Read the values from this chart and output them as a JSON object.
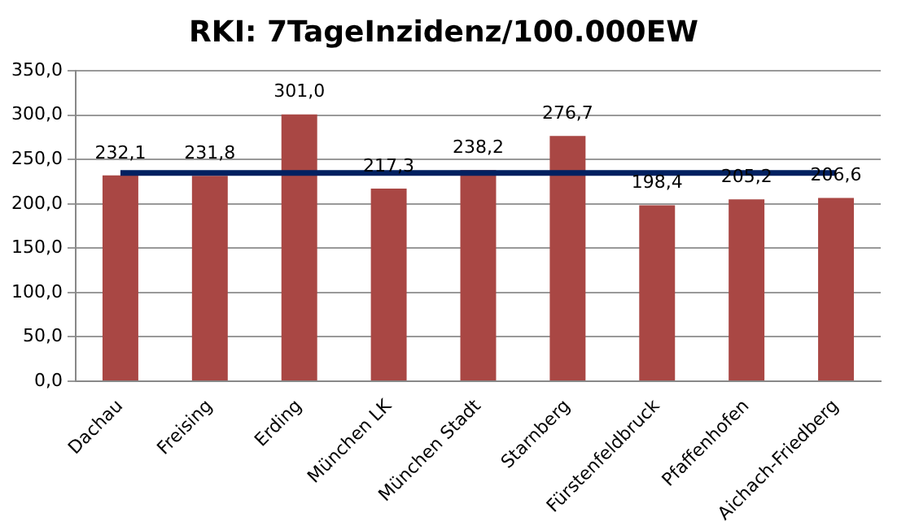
{
  "chart_data": {
    "type": "bar",
    "title": "RKI: 7TageInzidenz/100.000EW",
    "categories": [
      "Dachau",
      "Freising",
      "Erding",
      "München LK",
      "München Stadt",
      "Starnberg",
      "Fürstenfeldbruck",
      "Pfaffenhofen",
      "Aichach-Friedberg"
    ],
    "series": [
      {
        "color": "#a94744",
        "values": [
          232.1,
          231.8,
          301.0,
          217.3,
          238.2,
          276.7,
          198.4,
          205.2,
          206.6
        ],
        "value_labels": [
          "232,1",
          "231,8",
          "301,0",
          "217,3",
          "238,2",
          "276,7",
          "198,4",
          "205,2",
          "206,6"
        ]
      },
      {
        "type": "line",
        "color": "#002060",
        "values": [
          235,
          235,
          235,
          235,
          235,
          235,
          235,
          235,
          235
        ]
      }
    ],
    "ylim": [
      0,
      350
    ],
    "yticks": [
      {
        "value": 0,
        "label": "0,0"
      },
      {
        "value": 50,
        "label": "50,0"
      },
      {
        "value": 100,
        "label": "100,0"
      },
      {
        "value": 150,
        "label": "150,0"
      },
      {
        "value": 200,
        "label": "200,0"
      },
      {
        "value": 250,
        "label": "250,0"
      },
      {
        "value": 300,
        "label": "300,0"
      },
      {
        "value": 350,
        "label": "350,0"
      }
    ],
    "grid": "y",
    "legend": false,
    "marker": "none",
    "line_style": "solid"
  }
}
